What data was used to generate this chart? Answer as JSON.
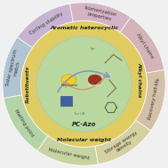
{
  "title": "",
  "bg_color": "#f5f5f5",
  "outer_ring_colors": [
    "#c8b4d4",
    "#d4b4c8",
    "#d4b8c0",
    "#d4c4b0",
    "#d4d4a8",
    "#c8d4a8",
    "#b8d4b0",
    "#b4c8d4"
  ],
  "outer_labels": [
    "Cycling stability",
    "Isomerization\nproperties",
    "Alkyl chains",
    "Recovery half-life",
    "Storage energy\ndensity",
    "Molecular weight",
    "Melting point",
    "Solar spectrum\nmatch",
    "Substituents",
    "Aromatic heterocyclic"
  ],
  "middle_ring_color": "#e8d870",
  "inner_circle_color": "#b8d4a0",
  "inner_circle_color2": "#a8c890",
  "center_label": "PC-Azo",
  "aromatic_label": "Aromatic heterocyclic",
  "molecular_label": "Molecular weight",
  "substituents_label": "Substituents",
  "figsize": [
    1.89,
    1.89
  ],
  "dpi": 100
}
